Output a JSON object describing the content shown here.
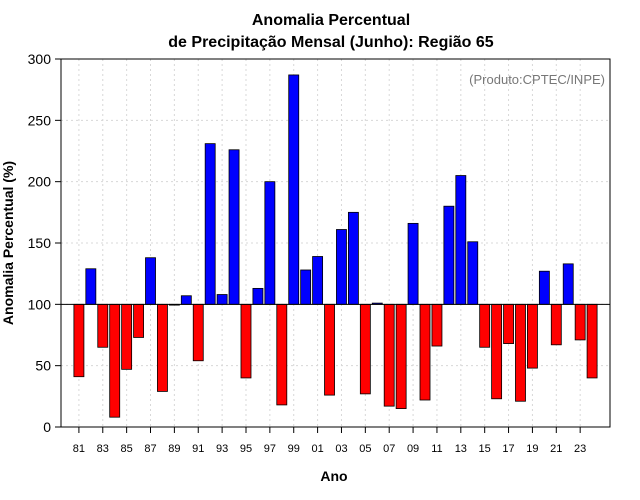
{
  "chart_data": {
    "type": "bar",
    "title_line1": "Anomalia Percentual",
    "title_line2": "de Precipitação Mensal (Junho): Região 65",
    "xlabel": "Ano",
    "ylabel": "Anomalia Percentual (%)",
    "annotation": "(Produto:CPTEC/INPE)",
    "ylim": [
      0,
      300
    ],
    "yticks": [
      0,
      50,
      100,
      150,
      200,
      250,
      300
    ],
    "baseline": 100,
    "xlim": [
      1979.5,
      2025.5
    ],
    "xtick_years": [
      1981,
      1983,
      1985,
      1987,
      1989,
      1991,
      1993,
      1995,
      1997,
      1999,
      2001,
      2003,
      2005,
      2007,
      2009,
      2011,
      2013,
      2015,
      2017,
      2019,
      2021,
      2023
    ],
    "xtick_labels": [
      "81",
      "83",
      "85",
      "87",
      "89",
      "91",
      "93",
      "95",
      "97",
      "99",
      "01",
      "03",
      "05",
      "07",
      "09",
      "11",
      "13",
      "15",
      "17",
      "19",
      "21",
      "23"
    ],
    "grid": true,
    "colors": {
      "above": "#0000ff",
      "below": "#ff0000"
    },
    "years": [
      1981,
      1982,
      1983,
      1984,
      1985,
      1986,
      1987,
      1988,
      1989,
      1990,
      1991,
      1992,
      1993,
      1994,
      1995,
      1996,
      1997,
      1998,
      1999,
      2000,
      2001,
      2002,
      2003,
      2004,
      2005,
      2006,
      2007,
      2008,
      2009,
      2010,
      2011,
      2012,
      2013,
      2014,
      2015,
      2016,
      2017,
      2018,
      2019,
      2020,
      2021,
      2022,
      2023,
      2024
    ],
    "values": [
      41,
      129,
      65,
      8,
      47,
      73,
      138,
      29,
      100,
      107,
      54,
      231,
      108,
      226,
      40,
      113,
      200,
      18,
      287,
      128,
      139,
      26,
      161,
      175,
      27,
      101,
      17,
      15,
      166,
      22,
      66,
      180,
      205,
      151,
      65,
      23,
      68,
      21,
      48,
      127,
      67,
      133,
      71,
      40
    ]
  }
}
